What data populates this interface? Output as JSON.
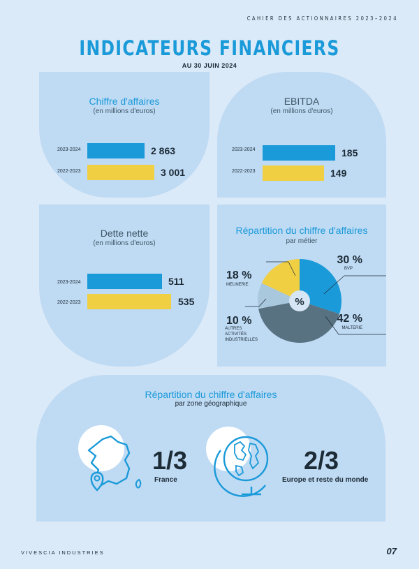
{
  "header": {
    "right_text": "CAHIER DES ACTIONNAIRES   2023–2024"
  },
  "page": {
    "title": "INDICATEURS FINANCIERS",
    "subtitle": "AU 30 JUIN 2024"
  },
  "colors": {
    "blue": "#1a9ad9",
    "yellow": "#f0cf43",
    "pie_dark": "#587281",
    "pie_light": "#a9c7dd"
  },
  "chart_data": [
    {
      "type": "bar",
      "title": "Chiffre d'affaires",
      "subtitle": "(en millions d'euros)",
      "categories": [
        "2023-2024",
        "2022-2023"
      ],
      "values": [
        2863,
        3001
      ],
      "value_labels": [
        "2 863",
        "3 001"
      ]
    },
    {
      "type": "bar",
      "title": "EBITDA",
      "subtitle": "(en millions d'euros)",
      "categories": [
        "2023-2024",
        "2022-2023"
      ],
      "values": [
        185,
        149
      ],
      "value_labels": [
        "185",
        "149"
      ]
    },
    {
      "type": "bar",
      "title": "Dette nette",
      "subtitle": "(en millions d'euros)",
      "categories": [
        "2023-2024",
        "2022-2023"
      ],
      "values": [
        511,
        535
      ],
      "value_labels": [
        "511",
        "535"
      ]
    },
    {
      "type": "pie",
      "title": "Répartition du chiffre d'affaires",
      "subtitle": "par métier",
      "center_label": "%",
      "slices": [
        {
          "name": "BVP",
          "value": 30,
          "label": "30 %"
        },
        {
          "name": "MALTERIE",
          "value": 42,
          "label": "42 %"
        },
        {
          "name": "AUTRES ACTIVITÉS INDUSTRIELLES",
          "value": 10,
          "label": "10 %"
        },
        {
          "name": "MEUNERIE",
          "value": 18,
          "label": "18 %"
        }
      ]
    }
  ],
  "geo": {
    "title": "Répartition du chiffre d'affaires",
    "subtitle": "par zone géographique",
    "items": [
      {
        "value": "1/3",
        "label": "France",
        "icon": "france-map-icon"
      },
      {
        "value": "2/3",
        "label": "Europe et reste du monde",
        "icon": "globe-icon"
      }
    ]
  },
  "footer": {
    "left": "VIVESCIA INDUSTRIES",
    "page_number": "07"
  }
}
